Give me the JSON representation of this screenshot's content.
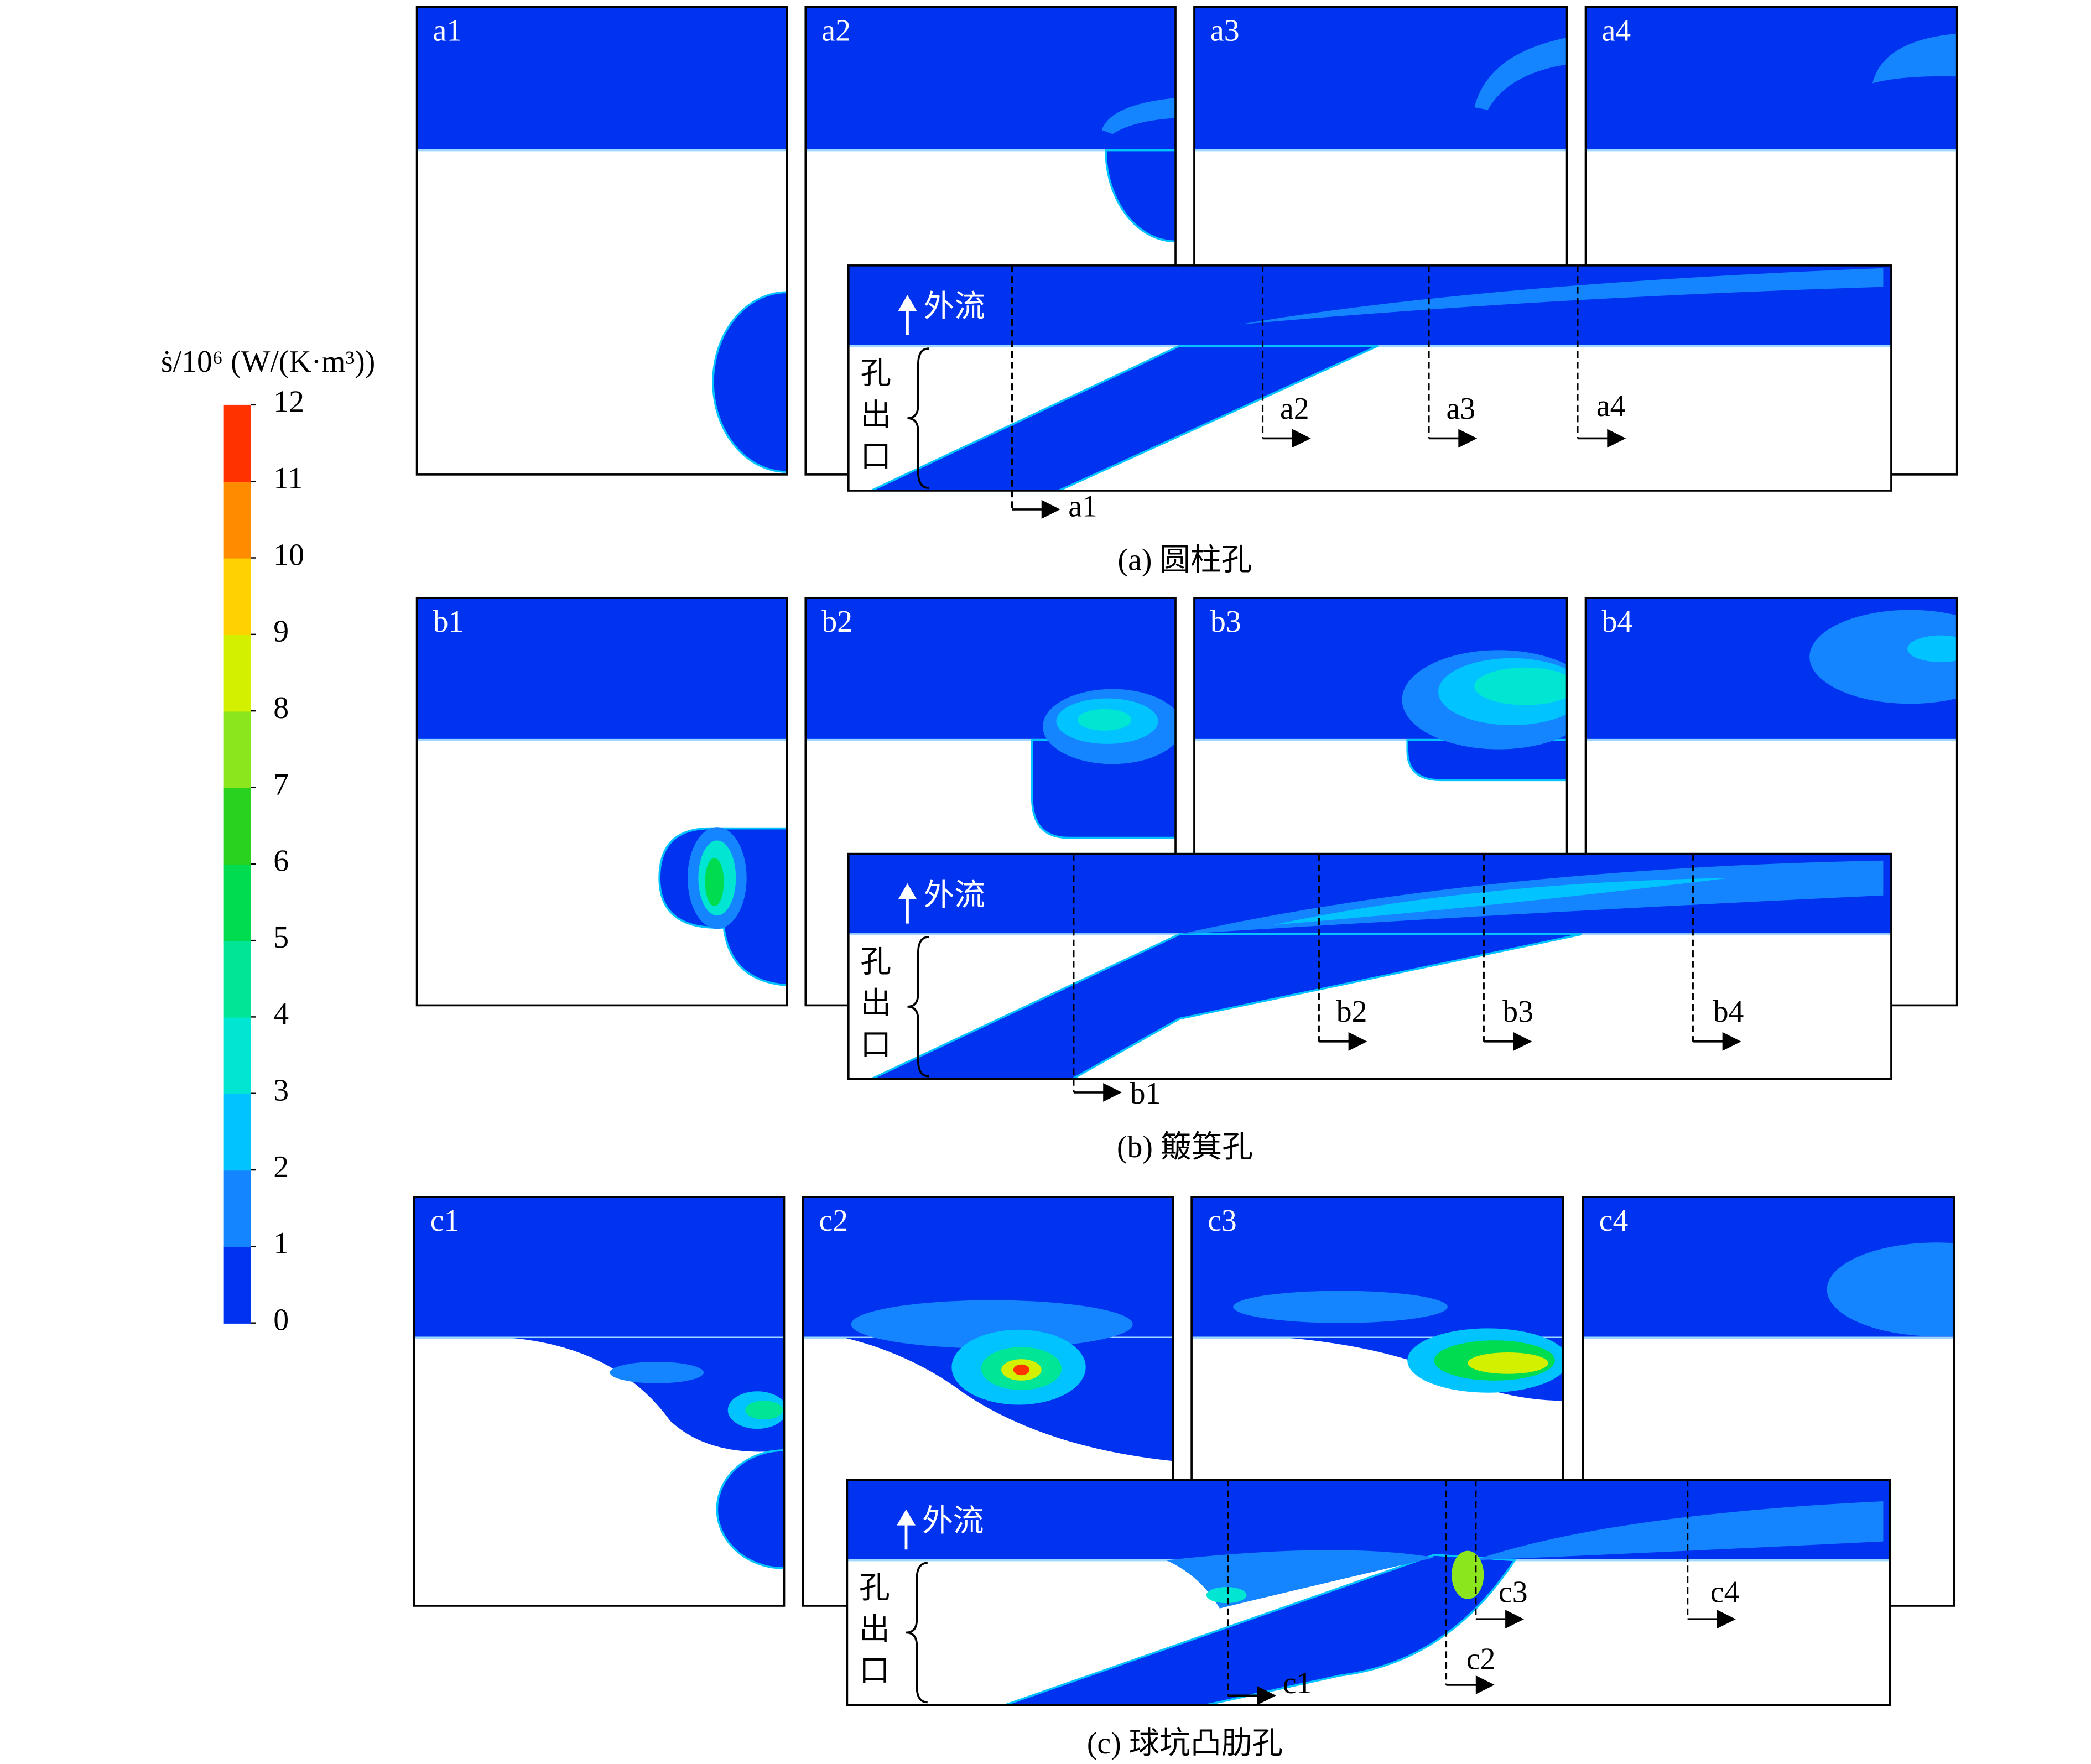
{
  "colorbar": {
    "title": "ṡ/10⁶ (W/(K·m³))",
    "ticks": [
      0,
      1,
      2,
      3,
      4,
      5,
      6,
      7,
      8,
      9,
      10,
      11,
      12
    ],
    "colors": [
      "#0033f0",
      "#1485ff",
      "#00c3ff",
      "#00e6d2",
      "#00e696",
      "#00dc50",
      "#28d21e",
      "#8ce61e",
      "#d2f000",
      "#ffd200",
      "#ff8c00",
      "#ff3200"
    ]
  },
  "rows": [
    {
      "caption": "(a) 圆柱孔",
      "panels": [
        "a1",
        "a2",
        "a3",
        "a4"
      ],
      "flow_label": "外流",
      "exit_label": "孔出口"
    },
    {
      "caption": "(b) 簸箕孔",
      "panels": [
        "b1",
        "b2",
        "b3",
        "b4"
      ],
      "flow_label": "外流",
      "exit_label": "孔出口"
    },
    {
      "caption": "(c) 球坑凸肋孔",
      "panels": [
        "c1",
        "c2",
        "c3",
        "c4"
      ],
      "flow_label": "外流",
      "exit_label": "孔出口"
    }
  ]
}
